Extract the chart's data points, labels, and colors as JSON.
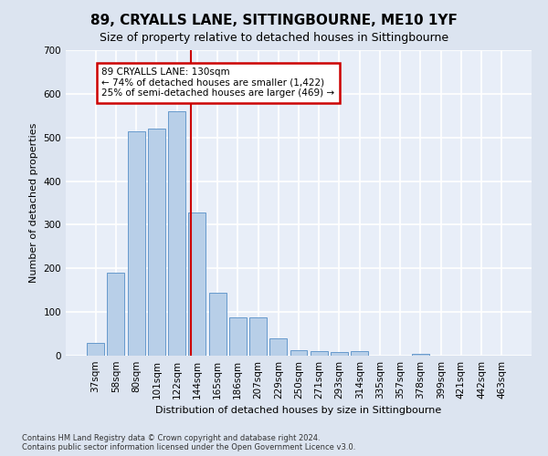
{
  "title": "89, CRYALLS LANE, SITTINGBOURNE, ME10 1YF",
  "subtitle": "Size of property relative to detached houses in Sittingbourne",
  "xlabel": "Distribution of detached houses by size in Sittingbourne",
  "ylabel": "Number of detached properties",
  "footnote": "Contains HM Land Registry data © Crown copyright and database right 2024.\nContains public sector information licensed under the Open Government Licence v3.0.",
  "categories": [
    "37sqm",
    "58sqm",
    "80sqm",
    "101sqm",
    "122sqm",
    "144sqm",
    "165sqm",
    "186sqm",
    "207sqm",
    "229sqm",
    "250sqm",
    "271sqm",
    "293sqm",
    "314sqm",
    "335sqm",
    "357sqm",
    "378sqm",
    "399sqm",
    "421sqm",
    "442sqm",
    "463sqm"
  ],
  "values": [
    30,
    190,
    515,
    520,
    560,
    328,
    145,
    88,
    88,
    40,
    12,
    10,
    8,
    10,
    0,
    0,
    5,
    0,
    0,
    0,
    0
  ],
  "bar_color": "#b8cfe8",
  "bar_edge_color": "#6699cc",
  "annotation_line1": "89 CRYALLS LANE: 130sqm",
  "annotation_line2": "← 74% of detached houses are smaller (1,422)",
  "annotation_line3": "25% of semi-detached houses are larger (469) →",
  "annotation_box_edge_color": "#cc0000",
  "red_line_x": 4.7,
  "ylim": [
    0,
    700
  ],
  "yticks": [
    0,
    100,
    200,
    300,
    400,
    500,
    600,
    700
  ],
  "background_color": "#e8eef8",
  "grid_color": "#ffffff",
  "fig_background": "#dce4f0",
  "title_fontsize": 11,
  "subtitle_fontsize": 9,
  "axis_label_fontsize": 8,
  "tick_fontsize": 7.5,
  "annotation_fontsize": 7.5,
  "footnote_fontsize": 6
}
